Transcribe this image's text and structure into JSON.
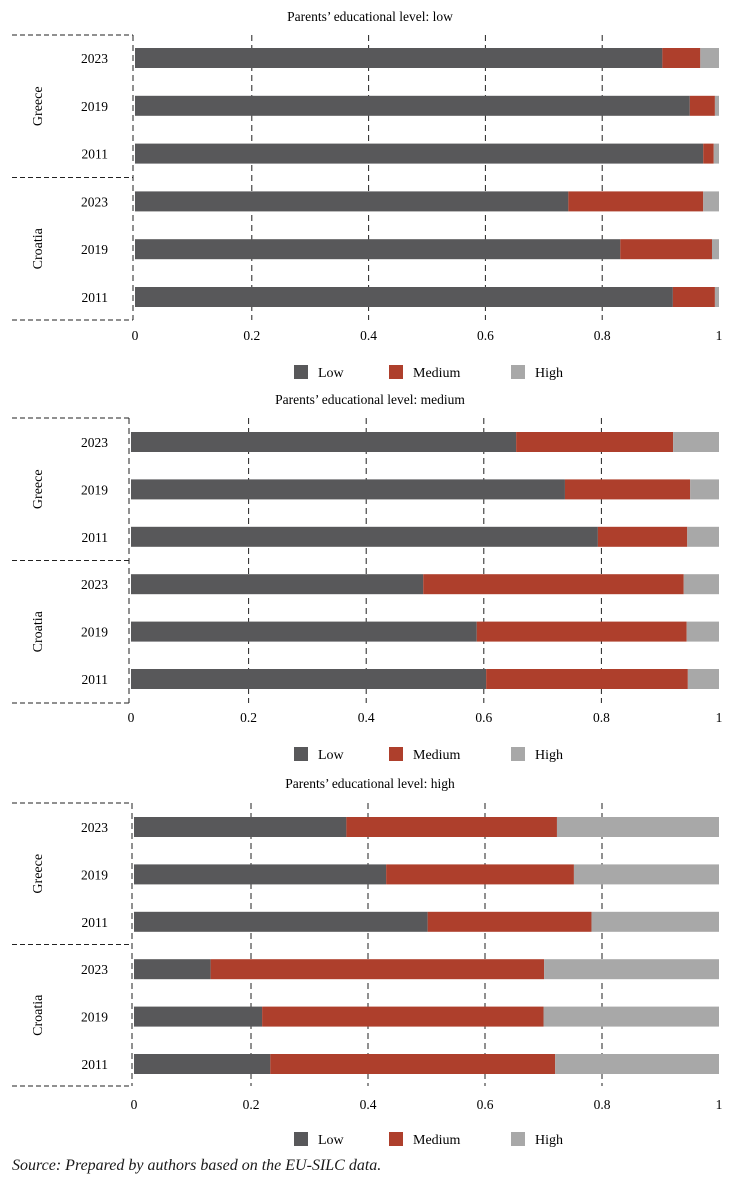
{
  "colors": {
    "Low": "#58585a",
    "Medium": "#ae3f2c",
    "High": "#a8a8a8",
    "grid": "#222222"
  },
  "legend": [
    "Low",
    "Medium",
    "High"
  ],
  "source": "Source: Prepared by authors based on the EU-SILC data.",
  "chart_data": [
    {
      "type": "bar",
      "orientation": "horizontal",
      "stacked": true,
      "title": "Parents’ educational level: low",
      "groups": [
        "Greece",
        "Croatia"
      ],
      "categories": [
        "2023",
        "2019",
        "2011"
      ],
      "xlim": [
        0,
        1
      ],
      "xticks": [
        "0",
        "0.2",
        "0.4",
        "0.6",
        "0.8",
        "1"
      ],
      "grid": "vertical dashed",
      "legend_position": "bottom",
      "series": [
        {
          "name": "Low",
          "values": {
            "Greece": [
              0.903,
              0.95,
              0.973
            ],
            "Croatia": [
              0.742,
              0.831,
              0.921
            ]
          }
        },
        {
          "name": "Medium",
          "values": {
            "Greece": [
              0.065,
              0.043,
              0.018
            ],
            "Croatia": [
              0.231,
              0.157,
              0.072
            ]
          }
        },
        {
          "name": "High",
          "values": {
            "Greece": [
              0.032,
              0.007,
              0.009
            ],
            "Croatia": [
              0.027,
              0.012,
              0.007
            ]
          }
        }
      ]
    },
    {
      "type": "bar",
      "orientation": "horizontal",
      "stacked": true,
      "title": "Parents’ educational level: medium",
      "groups": [
        "Greece",
        "Croatia"
      ],
      "categories": [
        "2023",
        "2019",
        "2011"
      ],
      "xlim": [
        0,
        1
      ],
      "xticks": [
        "0",
        "0.2",
        "0.4",
        "0.6",
        "0.8",
        "1"
      ],
      "grid": "vertical dashed",
      "legend_position": "bottom",
      "series": [
        {
          "name": "Low",
          "values": {
            "Greece": [
              0.655,
              0.738,
              0.794
            ],
            "Croatia": [
              0.497,
              0.588,
              0.604
            ]
          }
        },
        {
          "name": "Medium",
          "values": {
            "Greece": [
              0.267,
              0.213,
              0.152
            ],
            "Croatia": [
              0.443,
              0.357,
              0.343
            ]
          }
        },
        {
          "name": "High",
          "values": {
            "Greece": [
              0.078,
              0.049,
              0.054
            ],
            "Croatia": [
              0.06,
              0.055,
              0.053
            ]
          }
        }
      ]
    },
    {
      "type": "bar",
      "orientation": "horizontal",
      "stacked": true,
      "title": "Parents’ educational level: high",
      "groups": [
        "Greece",
        "Croatia"
      ],
      "categories": [
        "2023",
        "2019",
        "2011"
      ],
      "xlim": [
        0,
        1
      ],
      "xticks": [
        "0",
        "0.2",
        "0.4",
        "0.6",
        "0.8",
        "1"
      ],
      "grid": "vertical dashed",
      "legend_position": "bottom",
      "series": [
        {
          "name": "Low",
          "values": {
            "Greece": [
              0.363,
              0.431,
              0.502
            ],
            "Croatia": [
              0.131,
              0.219,
              0.233
            ]
          }
        },
        {
          "name": "Medium",
          "values": {
            "Greece": [
              0.36,
              0.321,
              0.28
            ],
            "Croatia": [
              0.57,
              0.481,
              0.487
            ]
          }
        },
        {
          "name": "High",
          "values": {
            "Greece": [
              0.277,
              0.248,
              0.218
            ],
            "Croatia": [
              0.299,
              0.3,
              0.28
            ]
          }
        }
      ]
    }
  ]
}
